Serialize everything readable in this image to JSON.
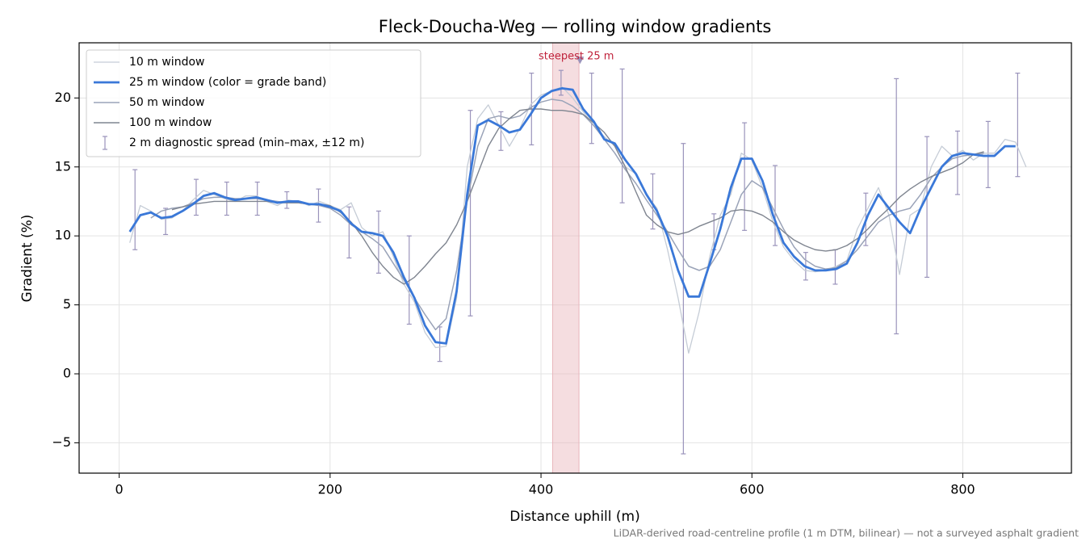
{
  "chart_data": {
    "type": "line",
    "title": "Fleck-Doucha-Weg — rolling window gradients",
    "x_label": "Distance uphill (m)",
    "y_label": "Gradient (%)",
    "footnote": "LiDAR-derived road-centreline profile (1 m DTM, bilinear) — not a surveyed asphalt gradient",
    "xlim": [
      -38,
      903
    ],
    "ylim": [
      -7.2,
      24.0
    ],
    "xticks": [
      0,
      200,
      400,
      600,
      800
    ],
    "yticks": [
      {
        "value": -5,
        "label": "−5"
      },
      0,
      5,
      10,
      15,
      20
    ],
    "grid": true,
    "legend": "upper left",
    "x": [
      10,
      20,
      30,
      40,
      50,
      60,
      70,
      80,
      90,
      100,
      110,
      120,
      130,
      140,
      150,
      160,
      170,
      180,
      190,
      200,
      210,
      220,
      230,
      240,
      250,
      260,
      270,
      280,
      290,
      300,
      310,
      320,
      330,
      340,
      350,
      360,
      370,
      380,
      390,
      400,
      410,
      420,
      430,
      440,
      450,
      460,
      470,
      480,
      490,
      500,
      510,
      520,
      530,
      540,
      550,
      560,
      570,
      580,
      590,
      600,
      610,
      620,
      630,
      640,
      650,
      660,
      670,
      680,
      690,
      700,
      710,
      720,
      730,
      740,
      750,
      760,
      770,
      780,
      790,
      800,
      810,
      820,
      830,
      840,
      850,
      860
    ],
    "series": [
      {
        "name": "10 m window",
        "color": "#c5ccd6",
        "width": 1.3,
        "values": [
          9.5,
          12.2,
          11.8,
          11.2,
          11.3,
          11.8,
          12.6,
          13.3,
          13.0,
          12.7,
          12.5,
          12.9,
          12.9,
          12.5,
          12.2,
          12.6,
          12.5,
          12.2,
          12.5,
          12.2,
          11.9,
          12.4,
          10.6,
          10.0,
          10.3,
          8.5,
          6.5,
          5.2,
          3.0,
          1.9,
          2.0,
          5.5,
          15.0,
          18.5,
          19.5,
          18.0,
          16.5,
          17.8,
          19.5,
          20.2,
          20.5,
          20.8,
          20.0,
          19.0,
          18.0,
          17.2,
          16.5,
          15.0,
          14.5,
          13.0,
          12.0,
          9.0,
          5.5,
          1.5,
          4.5,
          8.5,
          11.5,
          13.0,
          16.0,
          15.5,
          13.5,
          11.0,
          9.2,
          8.2,
          7.5,
          7.4,
          7.5,
          7.8,
          8.2,
          10.5,
          12.0,
          13.5,
          11.5,
          7.2,
          11.5,
          12.0,
          15.0,
          16.5,
          15.8,
          16.2,
          15.5,
          16.0,
          16.0,
          17.0,
          16.8,
          15.0
        ]
      },
      {
        "name": "25 m window (color = grade band)",
        "color": "#3a78d8",
        "width": 2.8,
        "values": [
          10.3,
          11.5,
          11.7,
          11.3,
          11.4,
          11.8,
          12.3,
          12.9,
          13.1,
          12.8,
          12.6,
          12.7,
          12.8,
          12.6,
          12.4,
          12.5,
          12.5,
          12.3,
          12.3,
          12.1,
          11.8,
          10.9,
          10.3,
          10.2,
          10.0,
          8.8,
          7.0,
          5.5,
          3.5,
          2.3,
          2.2,
          6.0,
          13.0,
          18.0,
          18.4,
          18.0,
          17.5,
          17.7,
          18.8,
          20.0,
          20.5,
          20.7,
          20.6,
          19.2,
          18.3,
          17.0,
          16.7,
          15.5,
          14.5,
          13.0,
          11.8,
          10.0,
          7.5,
          5.6,
          5.6,
          8.0,
          10.5,
          13.5,
          15.6,
          15.6,
          14.0,
          11.5,
          9.5,
          8.5,
          7.8,
          7.5,
          7.5,
          7.6,
          8.0,
          9.5,
          11.5,
          13.0,
          12.0,
          11.0,
          10.2,
          12.0,
          13.5,
          15.0,
          15.8,
          16.0,
          15.9,
          15.8,
          15.8,
          16.5,
          16.5,
          null
        ]
      },
      {
        "name": "50 m window",
        "color": "#9aa3b8",
        "width": 1.5,
        "values": [
          null,
          null,
          11.3,
          11.8,
          12.0,
          12.1,
          12.4,
          12.7,
          12.8,
          12.8,
          12.7,
          12.7,
          12.7,
          12.6,
          12.5,
          12.4,
          12.4,
          12.3,
          12.2,
          12.0,
          11.5,
          10.8,
          10.3,
          9.8,
          9.2,
          8.0,
          6.8,
          5.5,
          4.3,
          3.2,
          4.0,
          7.5,
          12.5,
          16.5,
          18.5,
          18.7,
          18.5,
          18.7,
          19.3,
          19.7,
          19.9,
          19.8,
          19.4,
          18.8,
          18.0,
          17.0,
          16.0,
          14.8,
          13.8,
          12.6,
          11.5,
          10.3,
          9.0,
          7.8,
          7.5,
          7.8,
          9.0,
          11.0,
          13.0,
          14.0,
          13.5,
          12.0,
          10.5,
          9.2,
          8.3,
          7.8,
          7.6,
          7.7,
          8.2,
          9.0,
          10.0,
          11.0,
          11.5,
          11.8,
          12.0,
          13.0,
          14.2,
          15.0,
          15.6,
          15.8,
          15.9,
          16.0,
          null,
          null,
          null,
          null
        ]
      },
      {
        "name": "100 m window",
        "color": "#7f8590",
        "width": 1.4,
        "values": [
          null,
          null,
          null,
          null,
          11.9,
          12.1,
          12.3,
          12.4,
          12.5,
          12.5,
          12.5,
          12.5,
          12.5,
          12.5,
          12.4,
          12.4,
          12.4,
          12.3,
          12.3,
          12.2,
          11.7,
          11.0,
          10.0,
          8.8,
          7.8,
          7.0,
          6.5,
          7.0,
          7.8,
          8.7,
          9.5,
          10.8,
          12.5,
          14.5,
          16.5,
          17.8,
          18.5,
          19.1,
          19.2,
          19.2,
          19.1,
          19.1,
          19.0,
          18.8,
          18.2,
          17.5,
          16.5,
          15.0,
          13.2,
          11.5,
          10.8,
          10.3,
          10.1,
          10.3,
          10.7,
          11.0,
          11.3,
          11.8,
          11.9,
          11.8,
          11.5,
          11.0,
          10.3,
          9.7,
          9.3,
          9.0,
          8.9,
          9.0,
          9.3,
          9.8,
          10.5,
          11.3,
          12.0,
          12.8,
          13.4,
          13.9,
          14.3,
          14.6,
          14.9,
          15.3,
          15.9,
          16.1,
          null,
          null,
          null,
          null
        ]
      }
    ],
    "errorbars": {
      "name": "2 m diagnostic spread (min–max, ±12 m)",
      "color": "#9a93bb",
      "x": [
        15,
        44,
        73,
        102,
        131,
        159,
        189,
        218,
        246,
        275,
        304,
        333,
        362,
        391,
        419,
        448,
        477,
        506,
        535,
        564,
        593,
        622,
        651,
        679,
        708,
        737,
        766,
        795,
        824,
        852
      ],
      "low": [
        9.0,
        10.1,
        11.5,
        11.5,
        11.5,
        12.0,
        11.0,
        8.4,
        7.3,
        3.6,
        0.9,
        4.2,
        16.2,
        16.6,
        20.2,
        16.7,
        12.4,
        10.5,
        -5.8,
        9.0,
        10.4,
        9.3,
        6.8,
        6.5,
        9.3,
        2.9,
        7.0,
        13.0,
        13.5,
        14.3
      ],
      "high": [
        14.8,
        12.0,
        14.1,
        13.9,
        13.9,
        13.2,
        13.4,
        12.1,
        11.8,
        10.0,
        3.4,
        19.1,
        19.0,
        21.8,
        22.0,
        21.8,
        22.1,
        14.5,
        16.7,
        11.6,
        18.2,
        15.1,
        8.8,
        9.0,
        13.1,
        21.4,
        17.2,
        17.6,
        18.3,
        21.8
      ]
    },
    "highlight": {
      "label": "steepest 25 m",
      "x": [
        411,
        436
      ],
      "color": "#e8b4bb",
      "marker": [
        437,
        22.7
      ],
      "text_color": "#c0223b"
    }
  }
}
